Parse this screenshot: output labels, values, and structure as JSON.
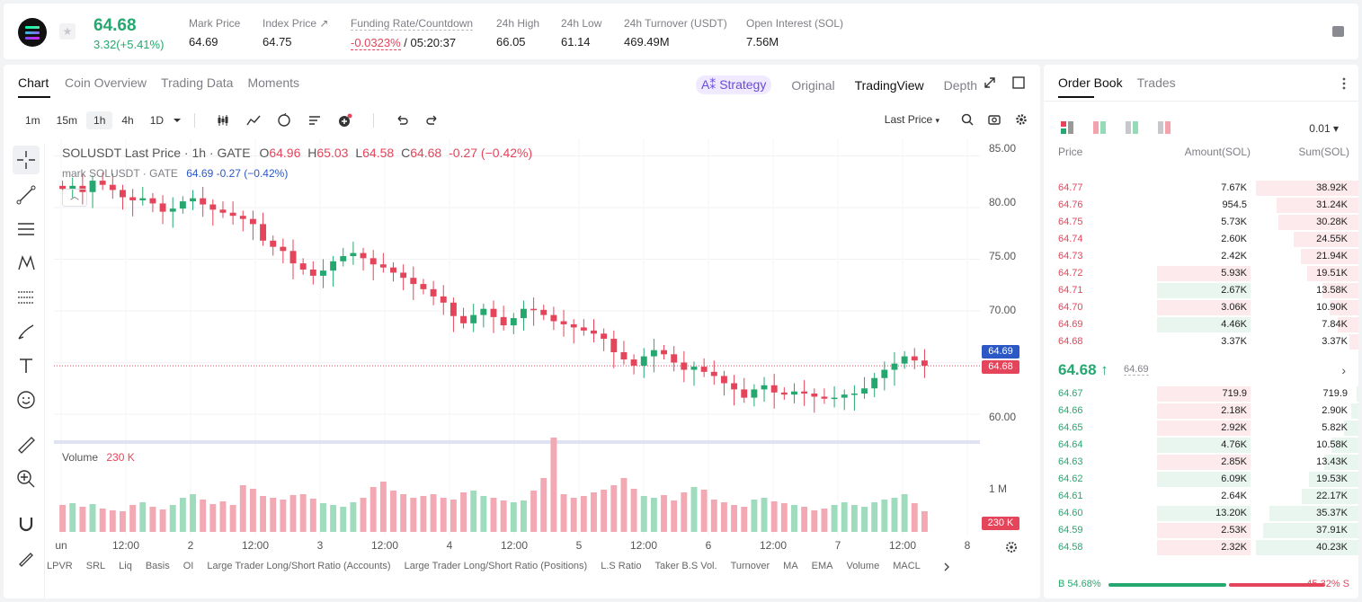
{
  "header": {
    "last_price": "64.68",
    "change": "3.32(+5.41%)",
    "stats": [
      {
        "label": "Mark Price",
        "value": "64.69",
        "color": "#1d1d1f"
      },
      {
        "label": "Index Price ↗",
        "value": "64.75",
        "color": "#1d1d1f"
      },
      {
        "label": "Funding Rate/Countdown",
        "value_red": "-0.0323%",
        "value": " / 05:20:37"
      },
      {
        "label": "24h High",
        "value": "66.05"
      },
      {
        "label": "24h Low",
        "value": "61.14"
      },
      {
        "label": "24h Turnover (USDT)",
        "value": "469.49M"
      },
      {
        "label": "Open Interest (SOL)",
        "value": "7.56M"
      }
    ]
  },
  "chart_tabs": [
    "Chart",
    "Coin Overview",
    "Trading Data",
    "Moments"
  ],
  "view_modes": {
    "strategy": "A⁑ Strategy",
    "original": "Original",
    "tradingview": "TradingView",
    "depth": "Depth"
  },
  "timeframes": [
    "1m",
    "15m",
    "1h",
    "4h",
    "1D"
  ],
  "last_price_select": "Last Price",
  "legend": {
    "symbol": "SOLUSDT Last Price · 1h · GATE",
    "o_label": "O",
    "o": "64.96",
    "h_label": "H",
    "h": "65.03",
    "l_label": "L",
    "l": "64.58",
    "c_label": "C",
    "c": "64.68",
    "chg": "-0.27 (−0.42%)",
    "mark_line": "mark SOLUSDT · GATE",
    "mark_vals": "64.69 -0.27 (−0.42%)"
  },
  "price_axis": {
    "labels": [
      "85.00",
      "80.00",
      "75.00",
      "70.00",
      "60.00"
    ],
    "mark_tag": "64.69",
    "last_tag": "64.68",
    "vol_label": "1 M",
    "vol_tag": "230 K"
  },
  "volume_legend": {
    "label": "Volume",
    "value": "230 K"
  },
  "time_axis": [
    "un",
    "12:00",
    "2",
    "12:00",
    "3",
    "12:00",
    "4",
    "12:00",
    "5",
    "12:00",
    "6",
    "12:00",
    "7",
    "12:00",
    "8"
  ],
  "indicators": [
    "LPVR",
    "SRL",
    "Liq",
    "Basis",
    "OI",
    "Large Trader Long/Short Ratio (Accounts)",
    "Large Trader Long/Short Ratio (Positions)",
    "L.S Ratio",
    "Taker B.S Vol.",
    "Turnover",
    "MA",
    "EMA",
    "Volume",
    "MACL"
  ],
  "orderbook": {
    "tabs": [
      "Order Book",
      "Trades"
    ],
    "precision": "0.01 ▾",
    "headers": {
      "price": "Price",
      "amount": "Amount(SOL)",
      "sum": "Sum(SOL)"
    },
    "asks": [
      {
        "price": "64.77",
        "amount": "7.67K",
        "sum": "38.92K",
        "amt_frac": 0.0,
        "sum_frac": 1.0
      },
      {
        "price": "64.76",
        "amount": "954.5",
        "sum": "31.24K",
        "amt_frac": 0.0,
        "sum_frac": 0.8
      },
      {
        "price": "64.75",
        "amount": "5.73K",
        "sum": "30.28K",
        "amt_frac": 0.0,
        "sum_frac": 0.78
      },
      {
        "price": "64.74",
        "amount": "2.60K",
        "sum": "24.55K",
        "amt_frac": 0.0,
        "sum_frac": 0.63
      },
      {
        "price": "64.73",
        "amount": "2.42K",
        "sum": "21.94K",
        "amt_frac": 0.0,
        "sum_frac": 0.56
      },
      {
        "price": "64.72",
        "amount": "5.93K",
        "sum": "19.51K",
        "amt_frac": 0.88,
        "sum_frac": 0.5,
        "amt_color": "#fdeaec"
      },
      {
        "price": "64.71",
        "amount": "2.67K",
        "sum": "13.58K",
        "amt_frac": 0.88,
        "sum_frac": 0.35,
        "amt_color": "#e8f6ef"
      },
      {
        "price": "64.70",
        "amount": "3.06K",
        "sum": "10.90K",
        "amt_frac": 0.88,
        "sum_frac": 0.28,
        "amt_color": "#fdeaec"
      },
      {
        "price": "64.69",
        "amount": "4.46K",
        "sum": "7.84K",
        "amt_frac": 0.88,
        "sum_frac": 0.2,
        "amt_color": "#e8f6ef"
      },
      {
        "price": "64.68",
        "amount": "3.37K",
        "sum": "3.37K",
        "amt_frac": 0.0,
        "sum_frac": 0.09
      }
    ],
    "mid": {
      "price": "64.68 ↑",
      "mark": "64.69"
    },
    "bids": [
      {
        "price": "64.67",
        "amount": "719.9",
        "sum": "719.9",
        "amt_frac": 0.88,
        "sum_frac": 0.02,
        "amt_color": "#fdeaec"
      },
      {
        "price": "64.66",
        "amount": "2.18K",
        "sum": "2.90K",
        "amt_frac": 0.88,
        "sum_frac": 0.07,
        "amt_color": "#fdeaec"
      },
      {
        "price": "64.65",
        "amount": "2.92K",
        "sum": "5.82K",
        "amt_frac": 0.88,
        "sum_frac": 0.14,
        "amt_color": "#fdeaec"
      },
      {
        "price": "64.64",
        "amount": "4.76K",
        "sum": "10.58K",
        "amt_frac": 0.88,
        "sum_frac": 0.26,
        "amt_color": "#e8f6ef"
      },
      {
        "price": "64.63",
        "amount": "2.85K",
        "sum": "13.43K",
        "amt_frac": 0.88,
        "sum_frac": 0.33,
        "amt_color": "#fdeaec"
      },
      {
        "price": "64.62",
        "amount": "6.09K",
        "sum": "19.53K",
        "amt_frac": 0.88,
        "sum_frac": 0.48,
        "amt_color": "#e8f6ef"
      },
      {
        "price": "64.61",
        "amount": "2.64K",
        "sum": "22.17K",
        "amt_frac": 0.0,
        "sum_frac": 0.55
      },
      {
        "price": "64.60",
        "amount": "13.20K",
        "sum": "35.37K",
        "amt_frac": 0.88,
        "sum_frac": 0.87,
        "amt_color": "#e8f6ef"
      },
      {
        "price": "64.59",
        "amount": "2.53K",
        "sum": "37.91K",
        "amt_frac": 0.88,
        "sum_frac": 0.93,
        "amt_color": "#fdeaec"
      },
      {
        "price": "64.58",
        "amount": "2.32K",
        "sum": "40.23K",
        "amt_frac": 0.88,
        "sum_frac": 1.0,
        "amt_color": "#fdeaec"
      }
    ],
    "ratio": {
      "buy": "B 54.68%",
      "sell": "45.32% S",
      "buy_frac": 0.5468
    }
  },
  "colors": {
    "up": "#25a870",
    "down": "#e5455a",
    "up_fill": "#e8f6ef",
    "down_fill": "#fdeaec"
  },
  "chart_data": {
    "type": "candlestick",
    "title": "SOLUSDT Last Price · 1h · GATE",
    "ylim": [
      58,
      86
    ],
    "series": [
      {
        "name": "close",
        "values": [
          81.8,
          82.1,
          81.5,
          82.6,
          82.2,
          81.7,
          81.0,
          80.7,
          80.9,
          80.4,
          79.6,
          79.9,
          80.6,
          80.9,
          80.3,
          79.8,
          79.5,
          79.2,
          78.9,
          78.4,
          76.8,
          76.2,
          75.8,
          74.6,
          74.0,
          73.4,
          73.9,
          74.8,
          75.3,
          75.6,
          75.1,
          74.5,
          74.2,
          73.7,
          73.2,
          72.6,
          72.1,
          71.4,
          70.8,
          69.5,
          68.8,
          69.6,
          70.2,
          69.4,
          68.6,
          69.3,
          70.2,
          70.1,
          69.6,
          69.0,
          68.7,
          68.4,
          68.1,
          67.8,
          67.3,
          66.0,
          65.3,
          64.7,
          65.6,
          66.2,
          65.8,
          65.0,
          64.3,
          64.6,
          64.1,
          63.7,
          63.0,
          62.4,
          61.6,
          62.4,
          62.8,
          62.1,
          61.9,
          62.2,
          62.0,
          61.7,
          61.5,
          61.6,
          61.9,
          62.0,
          62.5,
          63.5,
          64.3,
          64.9,
          65.6,
          65.2,
          64.7
        ]
      }
    ],
    "volume_values": [
      300,
      320,
      280,
      310,
      260,
      240,
      230,
      300,
      330,
      280,
      250,
      300,
      380,
      420,
      360,
      310,
      340,
      300,
      520,
      480,
      400,
      380,
      360,
      410,
      420,
      370,
      320,
      300,
      280,
      330,
      380,
      500,
      560,
      460,
      420,
      380,
      400,
      420,
      380,
      360,
      440,
      460,
      400,
      380,
      350,
      330,
      350,
      460,
      600,
      1050,
      420,
      380,
      400,
      440,
      470,
      520,
      600,
      480,
      400,
      380,
      410,
      350,
      440,
      500,
      470,
      360,
      330,
      300,
      280,
      360,
      380,
      340,
      320,
      300,
      280,
      240,
      260,
      300,
      330,
      300,
      280,
      330,
      360,
      380,
      420,
      320,
      230
    ]
  }
}
